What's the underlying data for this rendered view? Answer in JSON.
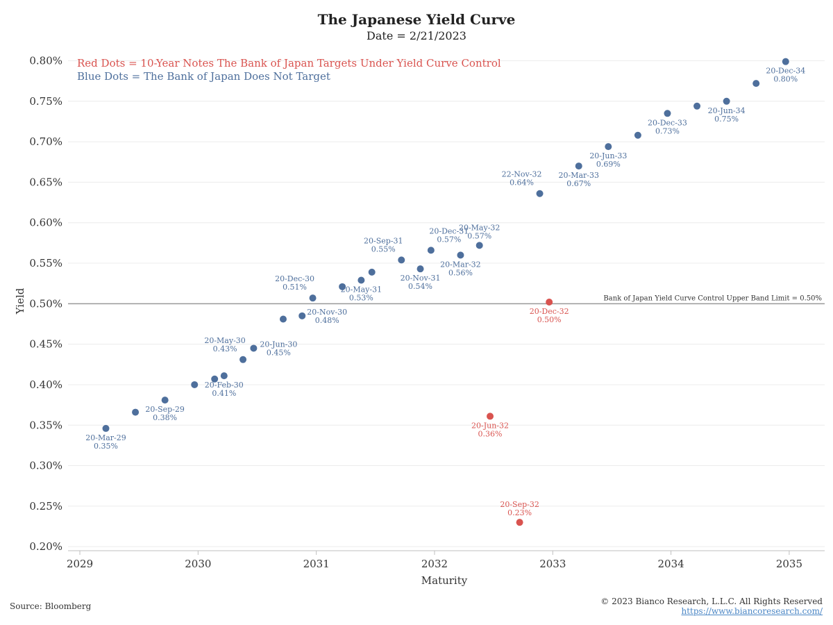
{
  "title": "The Japanese Yield Curve",
  "subtitle": "Date = 2/21/2023",
  "source": "Source: Bloomberg",
  "copyright": "© 2023 Bianco Research, L.L.C. All Rights Reserved",
  "website": "https://www.biancoresearch.com/",
  "colors": {
    "blue": "#4e6f9c",
    "red": "#d9534f",
    "grid": "#ececec",
    "limit_line": "#9a9a9a",
    "axis": "#bfbfbf"
  },
  "chart_data": {
    "type": "scatter",
    "xlabel": "Maturity",
    "ylabel": "Yield",
    "xlim": [
      2028.9,
      2035.3
    ],
    "ylim": [
      0.195,
      0.815
    ],
    "x_ticks": [
      2029,
      2030,
      2031,
      2032,
      2033,
      2034,
      2035
    ],
    "y_ticks": [
      0.2,
      0.25,
      0.3,
      0.35,
      0.4,
      0.45,
      0.5,
      0.55,
      0.6,
      0.65,
      0.7,
      0.75,
      0.8
    ],
    "y_tick_labels": [
      "0.20%",
      "0.25%",
      "0.30%",
      "0.35%",
      "0.40%",
      "0.45%",
      "0.50%",
      "0.55%",
      "0.60%",
      "0.65%",
      "0.70%",
      "0.75%",
      "0.80%"
    ],
    "grid": true,
    "legend": [
      {
        "text": "Red Dots = 10-Year Notes The Bank of Japan Targets Under Yield Curve Control",
        "color": "#d9534f"
      },
      {
        "text": "Blue Dots = The Bank of Japan Does Not Target",
        "color": "#4e6f9c"
      }
    ],
    "reference_line": {
      "y": 0.5,
      "label": "Bank of Japan Yield Curve Control Upper Band Limit = 0.50%"
    },
    "series": [
      {
        "color": "#4e6f9c",
        "points": [
          {
            "x": 2029.22,
            "y": 0.346,
            "label": "20-Mar-29",
            "value_label": "0.35%",
            "label_pos": "below"
          },
          {
            "x": 2029.47,
            "y": 0.366,
            "label": "",
            "value_label": ""
          },
          {
            "x": 2029.72,
            "y": 0.381,
            "label": "20-Sep-29",
            "value_label": "0.38%",
            "label_pos": "below"
          },
          {
            "x": 2029.97,
            "y": 0.4,
            "label": "",
            "value_label": ""
          },
          {
            "x": 2030.14,
            "y": 0.407,
            "label": "",
            "value_label": ""
          },
          {
            "x": 2030.22,
            "y": 0.411,
            "label": "20-Feb-30",
            "value_label": "0.41%",
            "label_pos": "below"
          },
          {
            "x": 2030.38,
            "y": 0.431,
            "label": "20-May-30",
            "value_label": "0.43%",
            "label_pos": "above-left"
          },
          {
            "x": 2030.47,
            "y": 0.445,
            "label": "20-Jun-30",
            "value_label": "0.45%",
            "label_pos": "right"
          },
          {
            "x": 2030.72,
            "y": 0.481,
            "label": "",
            "value_label": ""
          },
          {
            "x": 2030.88,
            "y": 0.485,
            "label": "20-Nov-30",
            "value_label": "0.48%",
            "label_pos": "right"
          },
          {
            "x": 2030.97,
            "y": 0.507,
            "label": "20-Dec-30",
            "value_label": "0.51%",
            "label_pos": "above-left"
          },
          {
            "x": 2031.22,
            "y": 0.521,
            "label": "",
            "value_label": ""
          },
          {
            "x": 2031.38,
            "y": 0.529,
            "label": "20-May-31",
            "value_label": "0.53%",
            "label_pos": "below"
          },
          {
            "x": 2031.47,
            "y": 0.539,
            "label": "",
            "value_label": ""
          },
          {
            "x": 2031.72,
            "y": 0.554,
            "label": "20-Sep-31",
            "value_label": "0.55%",
            "label_pos": "above-left"
          },
          {
            "x": 2031.88,
            "y": 0.543,
            "label": "20-Nov-31",
            "value_label": "0.54%",
            "label_pos": "below"
          },
          {
            "x": 2031.97,
            "y": 0.566,
            "label": "20-Dec-31",
            "value_label": "0.57%",
            "label_pos": "above-right"
          },
          {
            "x": 2032.22,
            "y": 0.56,
            "label": "20-Mar-32",
            "value_label": "0.56%",
            "label_pos": "below"
          },
          {
            "x": 2032.38,
            "y": 0.572,
            "label": "20-May-32",
            "value_label": "0.57%",
            "label_pos": "above"
          },
          {
            "x": 2032.89,
            "y": 0.636,
            "label": "22-Nov-32",
            "value_label": "0.64%",
            "label_pos": "above-left"
          },
          {
            "x": 2033.22,
            "y": 0.67,
            "label": "20-Mar-33",
            "value_label": "0.67%",
            "label_pos": "below"
          },
          {
            "x": 2033.47,
            "y": 0.694,
            "label": "20-Jun-33",
            "value_label": "0.69%",
            "label_pos": "below"
          },
          {
            "x": 2033.72,
            "y": 0.708,
            "label": "",
            "value_label": ""
          },
          {
            "x": 2033.97,
            "y": 0.735,
            "label": "20-Dec-33",
            "value_label": "0.73%",
            "label_pos": "below"
          },
          {
            "x": 2034.22,
            "y": 0.744,
            "label": "",
            "value_label": ""
          },
          {
            "x": 2034.47,
            "y": 0.75,
            "label": "20-Jun-34",
            "value_label": "0.75%",
            "label_pos": "below"
          },
          {
            "x": 2034.72,
            "y": 0.772,
            "label": "",
            "value_label": ""
          },
          {
            "x": 2034.97,
            "y": 0.799,
            "label": "20-Dec-34",
            "value_label": "0.80%",
            "label_pos": "below"
          }
        ]
      },
      {
        "color": "#d9534f",
        "points": [
          {
            "x": 2032.47,
            "y": 0.361,
            "label": "20-Jun-32",
            "value_label": "0.36%",
            "label_pos": "below"
          },
          {
            "x": 2032.72,
            "y": 0.23,
            "label": "20-Sep-32",
            "value_label": "0.23%",
            "label_pos": "above"
          },
          {
            "x": 2032.97,
            "y": 0.502,
            "label": "20-Dec-32",
            "value_label": "0.50%",
            "label_pos": "below"
          }
        ]
      }
    ]
  }
}
